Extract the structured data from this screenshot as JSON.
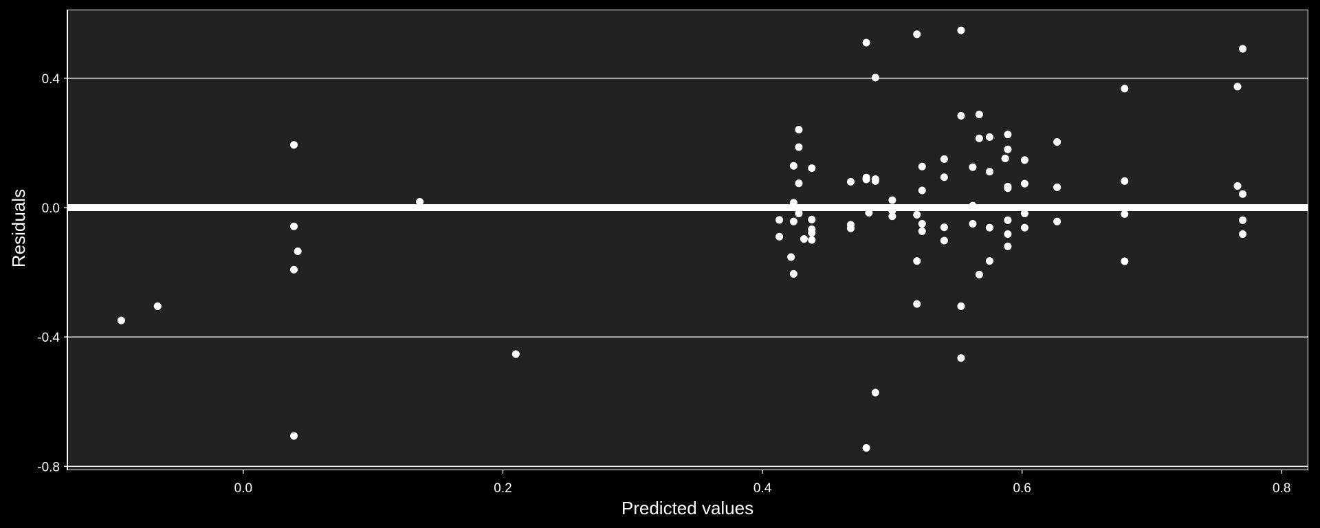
{
  "chart_data": {
    "type": "scatter",
    "title": "",
    "xlabel": "Predicted values",
    "ylabel": "Residuals",
    "xlim": [
      -0.135,
      0.82
    ],
    "ylim": [
      -0.81,
      0.61
    ],
    "x_ticks": [
      0.0,
      0.2,
      0.4,
      0.6,
      0.8
    ],
    "x_tick_labels": [
      "0.0",
      "0.2",
      "0.4",
      "0.6",
      "0.8"
    ],
    "y_ticks": [
      -0.8,
      -0.4,
      0.0,
      0.4
    ],
    "y_tick_labels": [
      "-0.8",
      "-0.4",
      "0.0",
      "0.4"
    ],
    "grid": "horizontal",
    "reference_line": 0.0,
    "colors": {
      "background": "#000000",
      "panel": "#222222",
      "points": "#ffffff",
      "text": "#ffffff"
    },
    "points": [
      [
        -0.094,
        -0.349
      ],
      [
        -0.066,
        -0.305
      ],
      [
        0.039,
        0.194
      ],
      [
        0.039,
        -0.058
      ],
      [
        0.042,
        -0.135
      ],
      [
        0.039,
        -0.192
      ],
      [
        0.039,
        -0.706
      ],
      [
        0.136,
        0.018
      ],
      [
        0.21,
        -0.453
      ],
      [
        0.413,
        -0.038
      ],
      [
        0.413,
        -0.09
      ],
      [
        0.422,
        -0.153
      ],
      [
        0.424,
        -0.205
      ],
      [
        0.424,
        0.129
      ],
      [
        0.424,
        0.015
      ],
      [
        0.424,
        0.006
      ],
      [
        0.424,
        -0.043
      ],
      [
        0.428,
        0.241
      ],
      [
        0.428,
        0.187
      ],
      [
        0.428,
        0.075
      ],
      [
        0.428,
        -0.005
      ],
      [
        0.428,
        -0.018
      ],
      [
        0.432,
        -0.097
      ],
      [
        0.438,
        0.122
      ],
      [
        0.438,
        -0.037
      ],
      [
        0.438,
        -0.067
      ],
      [
        0.438,
        -0.078
      ],
      [
        0.438,
        -0.1
      ],
      [
        0.468,
        0.08
      ],
      [
        0.468,
        -0.053
      ],
      [
        0.468,
        -0.064
      ],
      [
        0.48,
        0.51
      ],
      [
        0.48,
        0.093
      ],
      [
        0.48,
        0.087
      ],
      [
        0.48,
        -0.743
      ],
      [
        0.482,
        -0.016
      ],
      [
        0.487,
        0.402
      ],
      [
        0.487,
        0.088
      ],
      [
        0.487,
        0.082
      ],
      [
        0.487,
        -0.572
      ],
      [
        0.5,
        0.023
      ],
      [
        0.5,
        -0.01
      ],
      [
        0.5,
        -0.027
      ],
      [
        0.519,
        0.536
      ],
      [
        0.519,
        -0.022
      ],
      [
        0.519,
        -0.165
      ],
      [
        0.519,
        -0.298
      ],
      [
        0.523,
        0.127
      ],
      [
        0.523,
        0.053
      ],
      [
        0.523,
        -0.05
      ],
      [
        0.523,
        -0.073
      ],
      [
        0.54,
        0.15
      ],
      [
        0.54,
        0.094
      ],
      [
        0.54,
        -0.061
      ],
      [
        0.54,
        -0.102
      ],
      [
        0.553,
        0.548
      ],
      [
        0.553,
        0.284
      ],
      [
        0.553,
        -0.305
      ],
      [
        0.553,
        -0.465
      ],
      [
        0.562,
        0.125
      ],
      [
        0.562,
        0.006
      ],
      [
        0.562,
        -0.05
      ],
      [
        0.567,
        0.288
      ],
      [
        0.567,
        0.214
      ],
      [
        0.567,
        -0.207
      ],
      [
        0.575,
        0.218
      ],
      [
        0.575,
        0.111
      ],
      [
        0.575,
        -0.062
      ],
      [
        0.575,
        -0.165
      ],
      [
        0.587,
        0.152
      ],
      [
        0.589,
        0.226
      ],
      [
        0.589,
        0.18
      ],
      [
        0.589,
        0.065
      ],
      [
        0.589,
        0.06
      ],
      [
        0.589,
        -0.039
      ],
      [
        0.589,
        -0.082
      ],
      [
        0.589,
        -0.12
      ],
      [
        0.602,
        0.147
      ],
      [
        0.602,
        0.074
      ],
      [
        0.602,
        -0.018
      ],
      [
        0.602,
        -0.062
      ],
      [
        0.627,
        0.203
      ],
      [
        0.627,
        0.063
      ],
      [
        0.627,
        -0.043
      ],
      [
        0.679,
        0.368
      ],
      [
        0.679,
        0.082
      ],
      [
        0.679,
        -0.02
      ],
      [
        0.679,
        -0.166
      ],
      [
        0.766,
        0.374
      ],
      [
        0.766,
        0.067
      ],
      [
        0.77,
        0.491
      ],
      [
        0.77,
        0.042
      ],
      [
        0.77,
        -0.039
      ],
      [
        0.77,
        -0.082
      ]
    ]
  }
}
